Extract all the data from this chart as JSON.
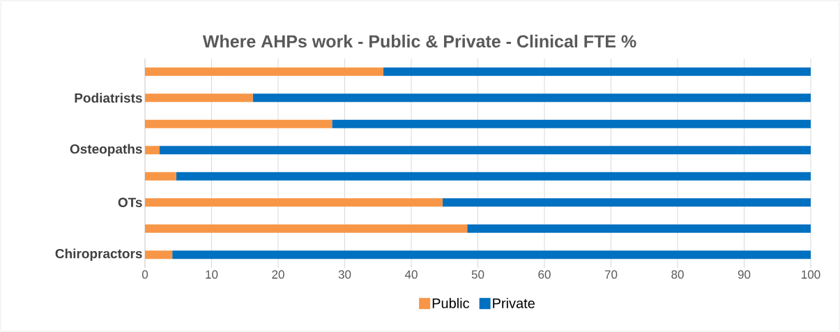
{
  "chart_data": {
    "type": "bar",
    "orientation": "horizontal",
    "stacked": true,
    "title": "Where AHPs work - Public & Private - Clinical FTE %",
    "categories": [
      null,
      "Podiatrists",
      null,
      "Osteopaths",
      null,
      "OTs",
      null,
      "Chiropractors"
    ],
    "series": [
      {
        "name": "Public",
        "color": "#f79646",
        "values": [
          35.8,
          16.2,
          28.1,
          2.2,
          4.7,
          44.7,
          48.4,
          4.1
        ]
      },
      {
        "name": "Private",
        "color": "#0070c0",
        "values": [
          64.2,
          83.8,
          71.9,
          97.8,
          95.3,
          55.3,
          51.6,
          95.9
        ]
      }
    ],
    "xlim": [
      0,
      100
    ],
    "xticks": [
      0,
      10,
      20,
      30,
      40,
      50,
      60,
      70,
      80,
      90,
      100
    ],
    "grid": "x",
    "legend": "bottom"
  }
}
